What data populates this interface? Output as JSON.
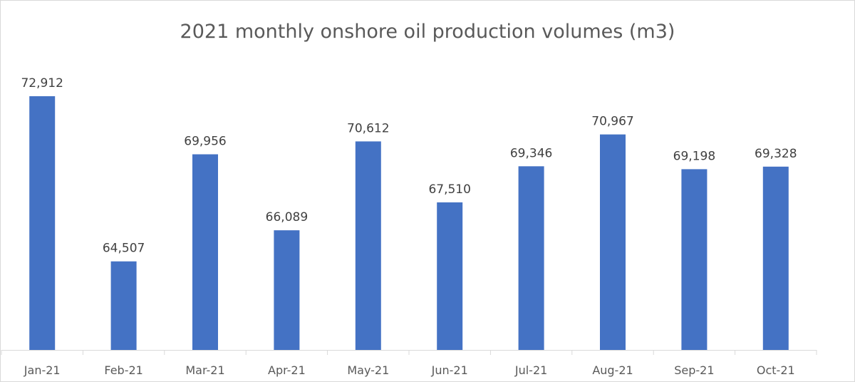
{
  "chart_data": {
    "type": "bar",
    "title": "2021 monthly onshore oil production volumes (m3)",
    "categories": [
      "Jan-21",
      "Feb-21",
      "Mar-21",
      "Apr-21",
      "May-21",
      "Jun-21",
      "Jul-21",
      "Aug-21",
      "Sep-21",
      "Oct-21"
    ],
    "series": [
      {
        "values": [
          72912,
          64507,
          69956,
          66089,
          70612,
          67510,
          69346,
          70967,
          69198,
          69328
        ],
        "labels": [
          "72,912",
          "64,507",
          "69,956",
          "66,089",
          "70,612",
          "67,510",
          "69,346",
          "70,967",
          "69,198",
          "69,328"
        ]
      }
    ],
    "xlabel": "",
    "ylabel": "",
    "ylim": [
      60000,
      74000
    ],
    "y_axis_visible": false,
    "grid": false,
    "legend": "none",
    "colors": {
      "bar": "#4472c4",
      "axis": "#d9d9d9",
      "title": "#595959",
      "data_label": "#404040",
      "tick_label": "#595959"
    }
  }
}
